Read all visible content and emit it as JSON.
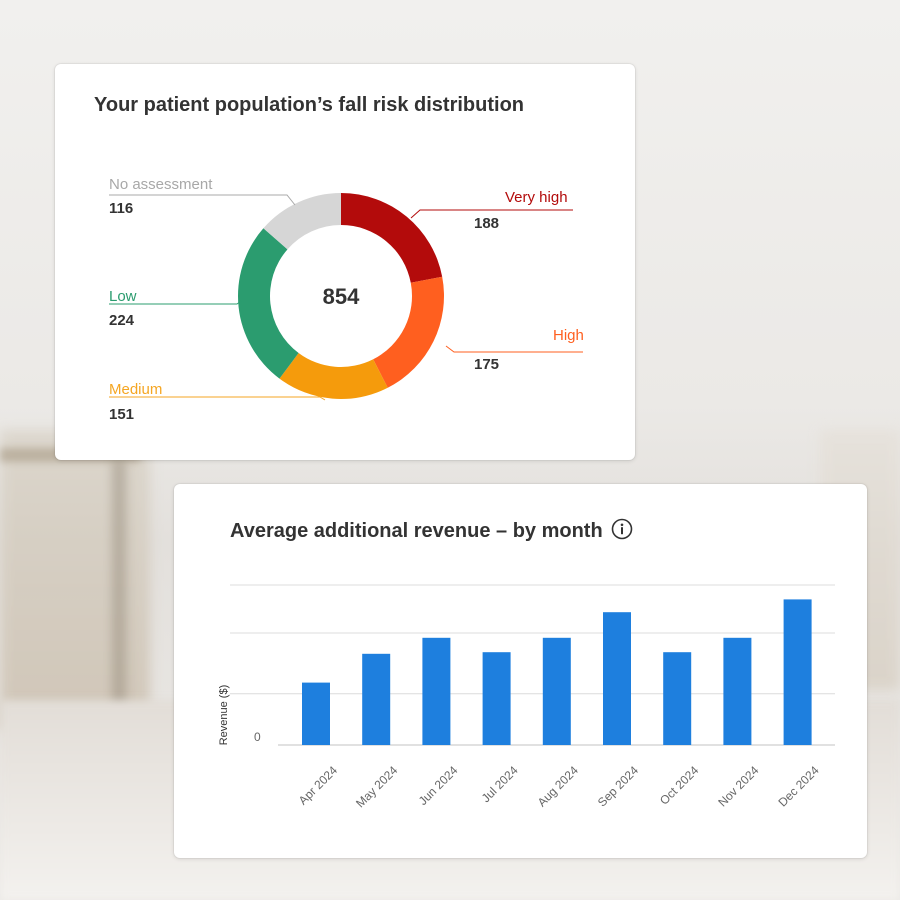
{
  "chart_data": [
    {
      "type": "pie",
      "title": "Your patient population’s fall risk distribution",
      "total": "854",
      "segments": [
        {
          "label": "Very high",
          "value": 188,
          "color": "#b30b0b"
        },
        {
          "label": "High",
          "value": 175,
          "color": "#ff5f1f"
        },
        {
          "label": "Medium",
          "value": 151,
          "color": "#f59b0c"
        },
        {
          "label": "Low",
          "value": 224,
          "color": "#2b9c6f"
        },
        {
          "label": "No assessment",
          "value": 116,
          "color": "#d6d6d6"
        }
      ],
      "label_colors": {
        "Very high": "#b30b0b",
        "High": "#ff5f1f",
        "Medium": "#f5a623",
        "Low": "#2b9c6f",
        "No assessment": "#a8a8a8"
      }
    },
    {
      "type": "bar",
      "title": "Average additional revenue – by month",
      "info_icon": "info-icon",
      "xlabel": "",
      "ylabel": "Revenue ($)",
      "y_tick_label": "0",
      "ylim": [
        0,
        100
      ],
      "gridlines": [
        32,
        70,
        100
      ],
      "categories": [
        "Apr 2024",
        "May 2024",
        "Jun 2024",
        "Jul 2024",
        "Aug 2024",
        "Sep 2024",
        "Oct 2024",
        "Nov 2024",
        "Dec 2024"
      ],
      "values": [
        39,
        57,
        67,
        58,
        67,
        83,
        58,
        67,
        91
      ],
      "bar_color": "#1e7fde"
    }
  ]
}
